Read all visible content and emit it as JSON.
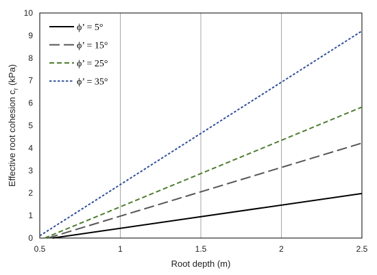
{
  "chart_data": {
    "type": "line",
    "xlabel": "Root depth (m)",
    "ylabel_main": "Effective root cohesion c",
    "ylabel_sub": "r",
    "ylabel_unit": " (kPa)",
    "xlim": [
      0.5,
      2.5
    ],
    "ylim": [
      0,
      10
    ],
    "xticks": [
      0.5,
      1,
      1.5,
      2,
      2.5
    ],
    "xtick_labels": [
      "0.5",
      "1",
      "1.5",
      "2",
      "2.5"
    ],
    "yticks": [
      0,
      1,
      2,
      3,
      4,
      5,
      6,
      7,
      8,
      9,
      10
    ],
    "ytick_labels": [
      "0",
      "1",
      "2",
      "3",
      "4",
      "5",
      "6",
      "7",
      "8",
      "9",
      "10"
    ],
    "grid": "vertical",
    "legend_position": "top-left",
    "series": [
      {
        "name": "ϕ’ = 5°",
        "color": "#000000",
        "dash": "solid",
        "x": [
          0.58,
          2.5
        ],
        "y": [
          0,
          1.98
        ]
      },
      {
        "name": "ϕ’ = 15°",
        "color": "#555555",
        "dash": "long-dash",
        "x": [
          0.55,
          2.5
        ],
        "y": [
          0,
          4.22
        ]
      },
      {
        "name": "ϕ’ = 25°",
        "color": "#4e7d2f",
        "dash": "medium-dash",
        "x": [
          0.53,
          2.5
        ],
        "y": [
          0,
          5.82
        ]
      },
      {
        "name": "ϕ’ = 35°",
        "color": "#2f4f9a",
        "dash": "short-dash",
        "x": [
          0.5,
          2.5
        ],
        "y": [
          0.1,
          9.2
        ]
      }
    ]
  }
}
